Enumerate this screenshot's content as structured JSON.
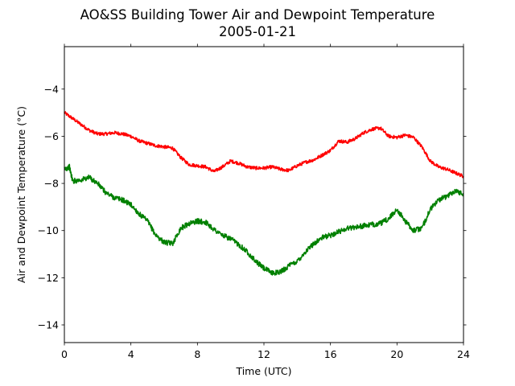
{
  "chart_data": {
    "type": "line",
    "title": "AO&SS Building Tower Air and Dewpoint Temperature",
    "subtitle": "2005-01-21",
    "xlabel": "Time (UTC)",
    "ylabel": "Air and Dewpoint Temperature (°C)",
    "xlim": [
      0,
      24
    ],
    "ylim": [
      -14.75,
      -2.2
    ],
    "xticks": [
      0,
      4,
      8,
      12,
      16,
      20,
      24
    ],
    "xtick_labels": [
      "0",
      "4",
      "8",
      "12",
      "16",
      "20",
      "24"
    ],
    "yticks": [
      -14,
      -12,
      -10,
      -8,
      -6,
      -4
    ],
    "ytick_labels": [
      "−14",
      "−12",
      "−10",
      "−8",
      "−6",
      "−4"
    ],
    "grid": false,
    "series": [
      {
        "color": "#ff0000",
        "x": [
          0,
          0.5,
          1,
          1.5,
          2,
          2.5,
          3,
          3.5,
          4,
          4.5,
          5,
          5.5,
          6,
          6.5,
          7,
          7.5,
          8,
          8.5,
          9,
          9.5,
          10,
          10.5,
          11,
          11.5,
          12,
          12.5,
          13,
          13.5,
          14,
          14.5,
          15,
          15.5,
          16,
          16.5,
          17,
          17.5,
          18,
          18.5,
          19,
          19.5,
          20,
          20.5,
          21,
          21.5,
          22,
          22.5,
          23,
          23.5,
          24
        ],
        "values": [
          -5.0,
          -5.25,
          -5.5,
          -5.75,
          -5.9,
          -5.9,
          -5.85,
          -5.9,
          -6.0,
          -6.2,
          -6.3,
          -6.4,
          -6.45,
          -6.5,
          -6.9,
          -7.2,
          -7.25,
          -7.3,
          -7.5,
          -7.3,
          -7.05,
          -7.15,
          -7.3,
          -7.35,
          -7.35,
          -7.3,
          -7.4,
          -7.45,
          -7.25,
          -7.1,
          -7.0,
          -6.8,
          -6.6,
          -6.2,
          -6.25,
          -6.1,
          -5.85,
          -5.7,
          -5.65,
          -6.0,
          -6.05,
          -5.95,
          -6.05,
          -6.45,
          -7.05,
          -7.3,
          -7.4,
          -7.55,
          -7.7
        ]
      },
      {
        "color": "#008000",
        "x": [
          0,
          0.3,
          0.5,
          1,
          1.5,
          2,
          2.5,
          3,
          3.5,
          4,
          4.5,
          5,
          5.5,
          6,
          6.5,
          7,
          7.5,
          8,
          8.5,
          9,
          9.5,
          10,
          10.5,
          11,
          11.5,
          12,
          12.5,
          13,
          13.5,
          14,
          14.5,
          15,
          15.5,
          16,
          16.5,
          17,
          17.5,
          18,
          18.5,
          19,
          19.5,
          20,
          20.5,
          21,
          21.5,
          22,
          22.5,
          23,
          23.5,
          24
        ],
        "values": [
          -7.4,
          -7.3,
          -7.9,
          -7.85,
          -7.75,
          -8.0,
          -8.4,
          -8.6,
          -8.7,
          -8.9,
          -9.3,
          -9.6,
          -10.2,
          -10.5,
          -10.55,
          -9.9,
          -9.7,
          -9.6,
          -9.65,
          -9.95,
          -10.2,
          -10.35,
          -10.6,
          -10.9,
          -11.3,
          -11.6,
          -11.8,
          -11.75,
          -11.5,
          -11.3,
          -10.9,
          -10.55,
          -10.3,
          -10.2,
          -10.05,
          -9.9,
          -9.85,
          -9.8,
          -9.75,
          -9.7,
          -9.5,
          -9.1,
          -9.6,
          -10.0,
          -9.9,
          -9.1,
          -8.7,
          -8.55,
          -8.3,
          -8.45
        ]
      }
    ]
  }
}
